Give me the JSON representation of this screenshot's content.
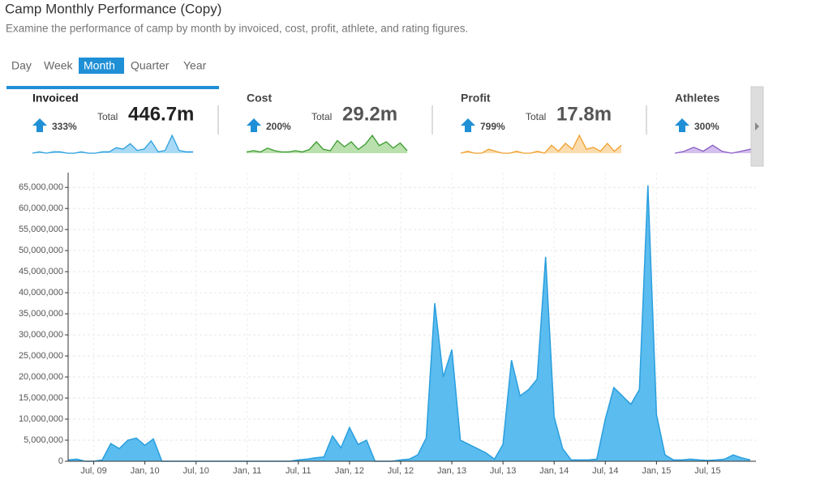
{
  "header": {
    "title": "Camp Monthly Performance (Copy)",
    "subtitle": "Examine the performance of camp by month by invoiced, cost, profit, athlete, and rating figures."
  },
  "tabs": [
    "Day",
    "Week",
    "Month",
    "Quarter",
    "Year"
  ],
  "active_tab": 2,
  "kpis": [
    {
      "name": "Invoiced",
      "change": "333%",
      "total_label": "Total",
      "total": "446.7m",
      "color": "#2a9fde",
      "fill": "#a9daf5",
      "sparkline": [
        0,
        1,
        0,
        1,
        1,
        0,
        0,
        1,
        0,
        0,
        1,
        1,
        4,
        3,
        7,
        2,
        3,
        9,
        1,
        2,
        13,
        2,
        1,
        1
      ]
    },
    {
      "name": "Cost",
      "change": "200%",
      "total_label": "Total",
      "total": "29.2m",
      "color": "#3a9a2e",
      "fill": "#b9e0ad",
      "sparkline": [
        1,
        2,
        1,
        4,
        2,
        1,
        1,
        2,
        1,
        3,
        9,
        3,
        2,
        10,
        5,
        9,
        3,
        7,
        14,
        6,
        9,
        4,
        8,
        2
      ]
    },
    {
      "name": "Profit",
      "change": "799%",
      "total_label": "Total",
      "total": "17.8m",
      "color": "#f0a030",
      "fill": "#fbdcae",
      "sparkline": [
        0,
        1,
        0,
        0,
        2,
        1,
        0,
        0,
        1,
        0,
        0,
        1,
        0,
        4,
        1,
        5,
        2,
        9,
        2,
        3,
        1,
        5,
        1,
        4
      ]
    },
    {
      "name": "Athletes",
      "change": "300%",
      "color": "#8a5cc4",
      "fill": "#d4c0ee",
      "sparkline": [
        0,
        1,
        3,
        1,
        4,
        1,
        0,
        1,
        2,
        1,
        1,
        2,
        8,
        9,
        8,
        1,
        0,
        5
      ]
    }
  ],
  "chart_data": {
    "type": "area",
    "color": "#2a9fde",
    "fill": "#5bbcef",
    "grid": true,
    "categories": [
      null,
      null,
      null,
      "Jul, 09",
      null,
      null,
      null,
      null,
      null,
      "Jan, 10",
      null,
      null,
      null,
      null,
      null,
      "Jul, 10",
      null,
      null,
      null,
      null,
      null,
      "Jan, 11",
      null,
      null,
      null,
      null,
      null,
      "Jul, 11",
      null,
      null,
      null,
      null,
      null,
      "Jan, 12",
      null,
      null,
      null,
      null,
      null,
      "Jul, 12",
      null,
      null,
      null,
      null,
      null,
      "Jan, 13",
      null,
      null,
      null,
      null,
      null,
      "Jul, 13",
      null,
      null,
      null,
      null,
      null,
      "Jan, 14",
      null,
      null,
      null,
      null,
      null,
      "Jul, 14",
      null,
      null,
      null,
      null,
      null,
      "Jan, 15",
      null,
      null,
      null,
      null,
      null,
      "Jul, 15",
      null,
      null,
      null,
      null,
      null
    ],
    "values": [
      300000,
      500000,
      0,
      0,
      300000,
      4200000,
      3000000,
      5000000,
      5500000,
      3800000,
      5300000,
      0,
      0,
      0,
      0,
      0,
      0,
      0,
      0,
      0,
      0,
      0,
      0,
      0,
      0,
      0,
      0,
      300000,
      500000,
      800000,
      1000000,
      6000000,
      3200000,
      8000000,
      4000000,
      5000000,
      0,
      0,
      0,
      300000,
      500000,
      1500000,
      5500000,
      37500000,
      20000000,
      26500000,
      5000000,
      4000000,
      3000000,
      2000000,
      500000,
      4000000,
      24000000,
      15500000,
      17000000,
      19500000,
      48500000,
      10500000,
      3000000,
      300000,
      300000,
      300000,
      500000,
      10000000,
      17500000,
      15500000,
      13500000,
      17000000,
      65500000,
      11000000,
      1500000,
      300000,
      300000,
      500000,
      300000,
      200000,
      300000,
      500000,
      1500000,
      800000,
      300000
    ],
    "ylim": [
      0,
      68500000
    ],
    "yticks": [
      0,
      {
        "value": 5000000,
        "label": "5,000,000"
      },
      {
        "value": 10000000,
        "label": "10,000,000"
      },
      {
        "value": 15000000,
        "label": "15,000,000"
      },
      {
        "value": 20000000,
        "label": "20,000,000"
      },
      {
        "value": 25000000,
        "label": "25,000,000"
      },
      {
        "value": 30000000,
        "label": "30,000,000"
      },
      {
        "value": 35000000,
        "label": "35,000,000"
      },
      {
        "value": 40000000,
        "label": "40,000,000"
      },
      {
        "value": 45000000,
        "label": "45,000,000"
      },
      {
        "value": 50000000,
        "label": "50,000,000"
      },
      {
        "value": 55000000,
        "label": "55,000,000"
      },
      {
        "value": 60000000,
        "label": "60,000,000"
      },
      {
        "value": 65000000,
        "label": "65,000,000"
      }
    ]
  }
}
